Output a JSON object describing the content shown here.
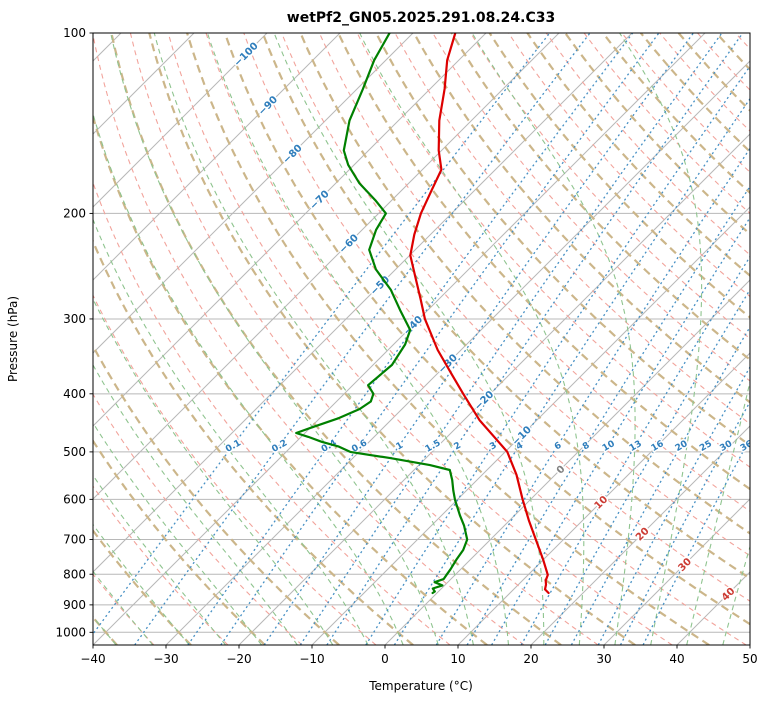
{
  "chart_data": {
    "type": "line",
    "chart_kind": "skew-t-log-p-sounding",
    "title": "wetPf2_GN05.2025.291.08.24.C33",
    "xlabel": "Temperature (°C)",
    "ylabel": "Pressure (hPa)",
    "xlim": [
      -40,
      50
    ],
    "pressure_lim": [
      100,
      1050
    ],
    "x_ticks": [
      -40,
      -30,
      -20,
      -10,
      0,
      10,
      20,
      30,
      40,
      50
    ],
    "pressure_ticks": [
      100,
      200,
      300,
      400,
      500,
      600,
      700,
      800,
      900,
      1000
    ],
    "grid_on": true,
    "isotherms": {
      "min": -160,
      "max": 50,
      "step": 10
    },
    "isotherm_labels": [
      -100,
      -90,
      -80,
      -70,
      -60,
      -50,
      -40,
      -30,
      -20,
      -10,
      0,
      10,
      20,
      30,
      40
    ],
    "isotherm_label_reference_theta_K": 326.6,
    "dry_adiabats": {
      "min": -40,
      "max": 190,
      "step": 5,
      "major_every": 10
    },
    "moist_adiabats": {
      "min": -55,
      "max": 45,
      "step": 5
    },
    "mixing_ratio_g_kg": [
      0.1,
      0.2,
      0.4,
      0.6,
      1,
      1.5,
      2,
      3,
      4,
      6,
      8,
      10,
      13,
      16,
      20,
      25,
      30,
      36
    ],
    "mixing_ratio_label_pressure_hPa": 488,
    "series": [
      {
        "name": "temperature",
        "color": "#dd0000",
        "points_p_hPa_T_C": [
          [
            100,
            -74.2
          ],
          [
            111,
            -71.6
          ],
          [
            124,
            -68.0
          ],
          [
            140,
            -64.4
          ],
          [
            157,
            -60.4
          ],
          [
            169,
            -57.4
          ],
          [
            183,
            -55.9
          ],
          [
            200,
            -54.2
          ],
          [
            217,
            -52.2
          ],
          [
            235,
            -49.9
          ],
          [
            258,
            -45.8
          ],
          [
            278,
            -42.5
          ],
          [
            300,
            -39.2
          ],
          [
            338,
            -33.2
          ],
          [
            372,
            -27.8
          ],
          [
            400,
            -23.7
          ],
          [
            443,
            -17.8
          ],
          [
            478,
            -12.7
          ],
          [
            500,
            -9.7
          ],
          [
            546,
            -5.3
          ],
          [
            600,
            -1.1
          ],
          [
            650,
            2.6
          ],
          [
            700,
            6.2
          ],
          [
            757,
            10.0
          ],
          [
            802,
            12.7
          ],
          [
            820,
            13.2
          ],
          [
            833,
            13.8
          ],
          [
            848,
            14.3
          ],
          [
            860,
            15.3
          ]
        ]
      },
      {
        "name": "dewpoint",
        "color": "#008000",
        "points_p_hPa_T_C": [
          [
            100,
            -83.2
          ],
          [
            111,
            -81.6
          ],
          [
            124,
            -79.2
          ],
          [
            140,
            -76.7
          ],
          [
            157,
            -73.4
          ],
          [
            166,
            -70.8
          ],
          [
            178,
            -66.8
          ],
          [
            190,
            -62.3
          ],
          [
            200,
            -59.0
          ],
          [
            213,
            -58.1
          ],
          [
            230,
            -56.3
          ],
          [
            248,
            -52.7
          ],
          [
            268,
            -47.9
          ],
          [
            290,
            -43.8
          ],
          [
            313,
            -39.7
          ],
          [
            331,
            -38.4
          ],
          [
            358,
            -37.4
          ],
          [
            387,
            -37.9
          ],
          [
            400,
            -36.0
          ],
          [
            412,
            -35.3
          ],
          [
            424,
            -35.8
          ],
          [
            440,
            -37.5
          ],
          [
            455,
            -39.8
          ],
          [
            465,
            -41.2
          ],
          [
            472,
            -39.0
          ],
          [
            481,
            -36.5
          ],
          [
            490,
            -33.5
          ],
          [
            500,
            -31.2
          ],
          [
            512,
            -24.9
          ],
          [
            526,
            -18.5
          ],
          [
            536,
            -15.1
          ],
          [
            557,
            -13.4
          ],
          [
            580,
            -11.8
          ],
          [
            601,
            -10.3
          ],
          [
            638,
            -7.5
          ],
          [
            664,
            -5.5
          ],
          [
            700,
            -3.2
          ],
          [
            729,
            -2.3
          ],
          [
            757,
            -1.9
          ],
          [
            785,
            -1.4
          ],
          [
            800,
            -1.2
          ],
          [
            815,
            -1.0
          ],
          [
            825,
            -1.8
          ],
          [
            835,
            -0.3
          ],
          [
            845,
            -1.2
          ],
          [
            855,
            -0.5
          ],
          [
            860,
            -0.6
          ]
        ]
      }
    ],
    "colors": {
      "grid": "#b8b8b8",
      "dry_major": "#ccb68a",
      "dry_minor": "#f2a49c",
      "moist": "#8fc48f",
      "mixing": "#4790c4",
      "label_negative": "#2f7ebc",
      "label_zero": "#808080",
      "label_positive": "#cc3b33",
      "frame": "#000000"
    }
  }
}
